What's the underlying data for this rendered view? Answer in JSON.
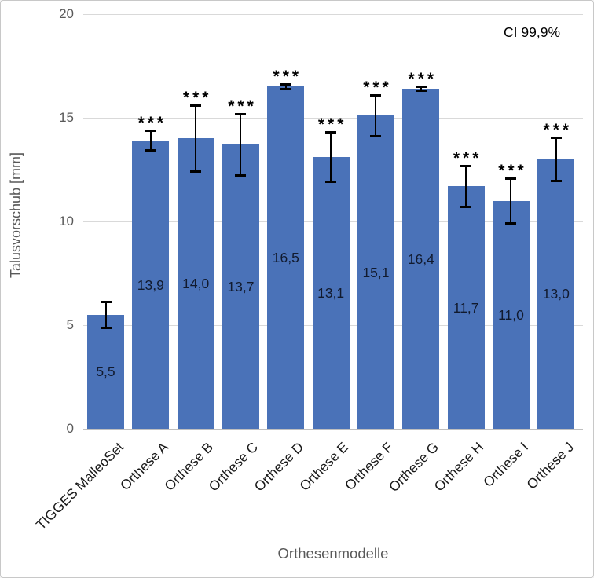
{
  "chart_data": {
    "type": "bar",
    "title": "",
    "annotation": "CI 99,9%",
    "xlabel": "Orthesenmodelle",
    "ylabel": "Talusvorschub [mm]",
    "ylim": [
      0,
      20
    ],
    "yticks": [
      0,
      5,
      10,
      15,
      20
    ],
    "grid": true,
    "legend": "none",
    "categories": [
      "TIGGES MalleoSet",
      "Orthese A",
      "Orthese B",
      "Orthese C",
      "Orthese D",
      "Orthese E",
      "Orthese F",
      "Orthese G",
      "Orthese H",
      "Orthese I",
      "Orthese J"
    ],
    "values": [
      5.5,
      13.9,
      14.0,
      13.7,
      16.5,
      13.1,
      15.1,
      16.4,
      11.7,
      11.0,
      13.0
    ],
    "value_labels": [
      "5,5",
      "13,9",
      "14,0",
      "13,7",
      "16,5",
      "13,1",
      "15,1",
      "16,4",
      "11,7",
      "11,0",
      "13,0"
    ],
    "error_bars": [
      0.65,
      0.5,
      1.6,
      1.5,
      0.12,
      1.2,
      1.0,
      0.12,
      1.0,
      1.1,
      1.05
    ],
    "significance": [
      "",
      "***",
      "***",
      "***",
      "***",
      "***",
      "***",
      "***",
      "***",
      "***",
      "***"
    ],
    "colors": {
      "bar_fill": "#4a72b8",
      "error_bar": "#000000",
      "gridline": "#d9d9d9",
      "axis_line": "#bfbfbf",
      "tick_label": "#595959",
      "axis_title": "#595959",
      "category_label": "#1a1a1a",
      "data_label": "#111a2e",
      "annotation_color": "#000000",
      "background": "#ffffff",
      "border": "#c8c8c8"
    }
  }
}
